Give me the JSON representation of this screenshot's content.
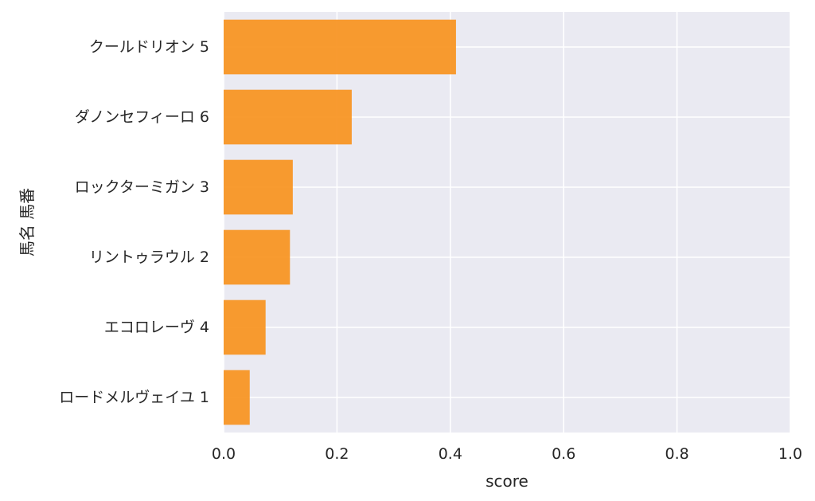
{
  "chart_data": {
    "type": "bar",
    "orientation": "horizontal",
    "categories": [
      "クールドリオン 5",
      "ダノンセフィーロ 6",
      "ロックターミガン 3",
      "リントゥラウル 2",
      "エコロレーヴ 4",
      "ロードメルヴェイユ 1"
    ],
    "values": [
      0.41,
      0.226,
      0.122,
      0.117,
      0.074,
      0.046
    ],
    "xlabel": "score",
    "ylabel": "馬名 馬番",
    "xlim": [
      0.0,
      1.0
    ],
    "xticks": [
      "0.0",
      "0.2",
      "0.4",
      "0.6",
      "0.8",
      "1.0"
    ],
    "grid": true,
    "colors": {
      "bar": "#f7931e",
      "plot_background": "#eaeaf2",
      "grid": "#ffffff"
    }
  }
}
